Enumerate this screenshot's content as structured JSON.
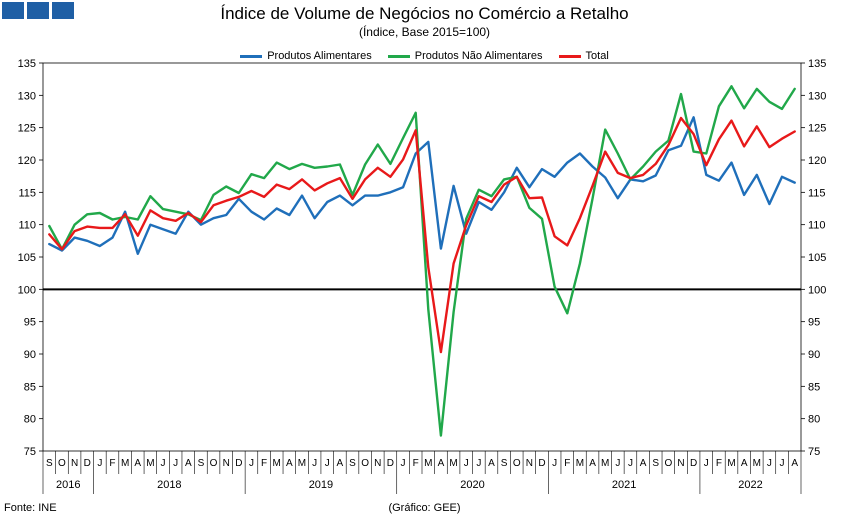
{
  "header": {
    "title": "Índice de Volume de Negócios no Comércio a Retalho",
    "subtitle": "(Índice, Base 2015=100)"
  },
  "footer": {
    "source": "Fonte: INE",
    "credit": "(Gráfico: GEE)"
  },
  "colors": {
    "alimentares": "#1f6fba",
    "nao_alimentares": "#21a84a",
    "total": "#e8191a",
    "logo": "#1f5fa5"
  },
  "chart_data": {
    "type": "line",
    "ylim": [
      75,
      135
    ],
    "y_ticks": [
      75,
      80,
      85,
      90,
      95,
      100,
      105,
      110,
      115,
      120,
      125,
      130,
      135
    ],
    "reference_line": 100,
    "grid": false,
    "legend_position": "top-center",
    "x": [
      "S",
      "O",
      "N",
      "D",
      "J",
      "F",
      "M",
      "A",
      "M",
      "J",
      "J",
      "A",
      "S",
      "O",
      "N",
      "D",
      "J",
      "F",
      "M",
      "A",
      "M",
      "J",
      "J",
      "A",
      "S",
      "O",
      "N",
      "D",
      "J",
      "F",
      "M",
      "A",
      "M",
      "J",
      "J",
      "A",
      "S",
      "O",
      "N",
      "D",
      "J",
      "F",
      "M",
      "A",
      "M",
      "J",
      "J",
      "A",
      "S",
      "O",
      "N",
      "D",
      "J",
      "F",
      "M",
      "A",
      "M",
      "J",
      "J",
      "A"
    ],
    "year_groups": [
      {
        "label": "2016",
        "span": 4
      },
      {
        "label": "2018",
        "span": 12
      },
      {
        "label": "2019",
        "span": 12
      },
      {
        "label": "2020",
        "span": 12
      },
      {
        "label": "2021",
        "span": 12
      },
      {
        "label": "2022",
        "span": 8
      }
    ],
    "series": [
      {
        "name": "Produtos Alimentares",
        "color": "#1f6fba",
        "values": [
          107.0,
          106.0,
          108.0,
          107.5,
          106.7,
          108.0,
          112.0,
          105.5,
          110.0,
          109.3,
          108.6,
          112.0,
          110.0,
          111.0,
          111.5,
          114.0,
          112.0,
          110.8,
          112.5,
          111.5,
          114.5,
          111.0,
          113.5,
          114.5,
          113.0,
          114.5,
          114.5,
          115.0,
          115.8,
          121.0,
          122.8,
          106.3,
          116.0,
          108.6,
          113.5,
          112.3,
          115.0,
          118.8,
          115.8,
          118.6,
          117.4,
          119.6,
          121.0,
          119.0,
          117.3,
          114.1,
          117.0,
          116.7,
          117.6,
          121.5,
          122.2,
          126.6,
          117.7,
          116.8,
          119.6,
          114.6,
          117.7,
          113.2,
          117.4,
          116.5
        ]
      },
      {
        "name": "Produtos Não Alimentares",
        "color": "#21a84a",
        "values": [
          109.8,
          106.2,
          110.0,
          111.6,
          111.8,
          110.8,
          111.2,
          110.8,
          114.4,
          112.4,
          112.0,
          111.6,
          110.7,
          114.6,
          115.9,
          114.9,
          117.8,
          117.2,
          119.6,
          118.6,
          119.4,
          118.8,
          119.0,
          119.3,
          114.6,
          119.3,
          122.4,
          119.4,
          123.4,
          127.3,
          96.9,
          77.4,
          96.5,
          110.9,
          115.4,
          114.4,
          117.0,
          117.4,
          112.6,
          110.9,
          100.4,
          96.3,
          104.0,
          114.0,
          124.7,
          121.0,
          117.0,
          119.0,
          121.3,
          123.0,
          130.2,
          121.3,
          121.0,
          128.3,
          131.4,
          128.0,
          131.0,
          129.0,
          127.9,
          131.0
        ]
      },
      {
        "name": "Total",
        "color": "#e8191a",
        "values": [
          108.5,
          106.2,
          109.0,
          109.7,
          109.5,
          109.5,
          111.6,
          108.3,
          112.2,
          111.0,
          110.6,
          111.8,
          110.4,
          113.0,
          113.7,
          114.3,
          115.2,
          114.3,
          116.2,
          115.5,
          117.0,
          115.3,
          116.4,
          117.2,
          114.0,
          117.0,
          118.8,
          117.4,
          120.1,
          124.6,
          103.4,
          90.3,
          104.0,
          109.9,
          114.4,
          113.5,
          116.2,
          117.4,
          114.1,
          114.2,
          108.2,
          106.8,
          111.0,
          116.0,
          121.3,
          118.0,
          117.2,
          117.7,
          119.4,
          122.3,
          126.5,
          124.0,
          119.2,
          123.2,
          126.1,
          122.1,
          125.2,
          122.0,
          123.3,
          124.4
        ]
      }
    ]
  }
}
